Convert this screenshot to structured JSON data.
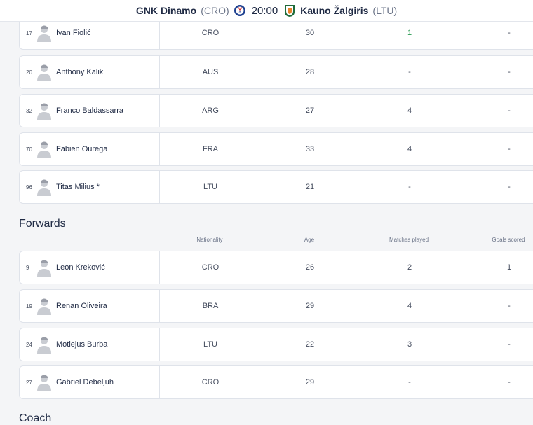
{
  "header": {
    "home_team": "GNK Dinamo",
    "home_country": "(CRO)",
    "kick_off": "20:00",
    "away_team": "Kauno Žalgiris",
    "away_country": "(LTU)"
  },
  "midfield_rows": [
    {
      "number": "17",
      "name": "Ivan Fiolić",
      "nationality": "CRO",
      "age": "30",
      "matches": "1",
      "goals": "-"
    },
    {
      "number": "20",
      "name": "Anthony Kalik",
      "nationality": "AUS",
      "age": "28",
      "matches": "-",
      "goals": "-"
    },
    {
      "number": "32",
      "name": "Franco Baldassarra",
      "nationality": "ARG",
      "age": "27",
      "matches": "4",
      "goals": "-"
    },
    {
      "number": "70",
      "name": "Fabien Ourega",
      "nationality": "FRA",
      "age": "33",
      "matches": "4",
      "goals": "-"
    },
    {
      "number": "96",
      "name": "Titas Milius *",
      "nationality": "LTU",
      "age": "21",
      "matches": "-",
      "goals": "-"
    }
  ],
  "forwards": {
    "title": "Forwards",
    "columns": {
      "nationality": "Nationality",
      "age": "Age",
      "matches": "Matches played",
      "goals": "Goals scored"
    },
    "rows": [
      {
        "number": "9",
        "name": "Leon Kreković",
        "nationality": "CRO",
        "age": "26",
        "matches": "2",
        "goals": "1"
      },
      {
        "number": "19",
        "name": "Renan Oliveira",
        "nationality": "BRA",
        "age": "29",
        "matches": "4",
        "goals": "-"
      },
      {
        "number": "24",
        "name": "Motiejus Burba",
        "nationality": "LTU",
        "age": "22",
        "matches": "3",
        "goals": "-"
      },
      {
        "number": "27",
        "name": "Gabriel Debeljuh",
        "nationality": "CRO",
        "age": "29",
        "matches": "-",
        "goals": "-"
      }
    ]
  },
  "coach": {
    "title": "Coach"
  },
  "colors": {
    "accent_green": "#2a9a52",
    "text": "#1f2a44",
    "muted": "#6b7488"
  }
}
